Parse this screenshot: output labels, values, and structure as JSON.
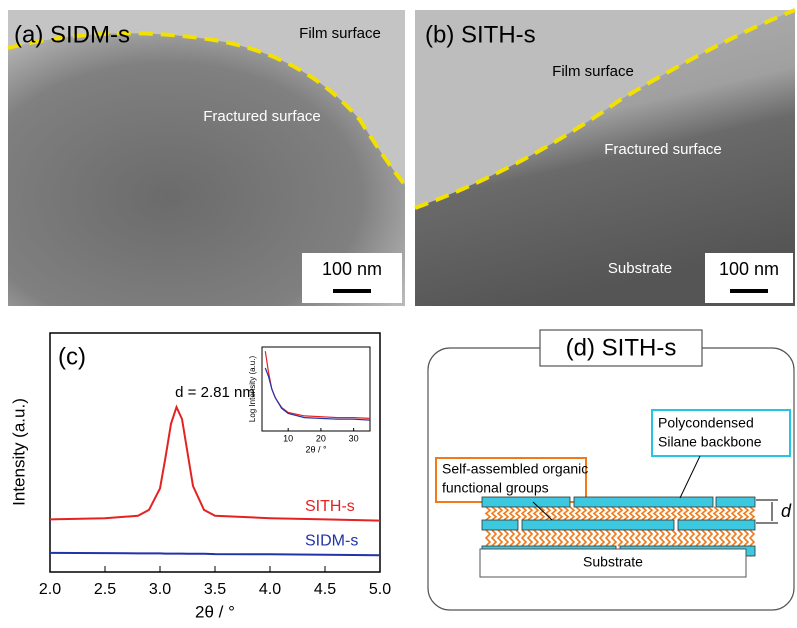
{
  "panels": {
    "a": {
      "label": "(a) SIDM-s",
      "top_text": "Film surface",
      "middle_text": "Fractured surface",
      "scale": "100 nm"
    },
    "b": {
      "label": "(b) SITH-s",
      "top_text": "Film surface",
      "middle_text": "Fractured surface",
      "bottom_text": "Substrate",
      "scale": "100 nm"
    }
  },
  "chart_data": [
    {
      "type": "line",
      "panel_label": "(c)",
      "x_label": "2θ / °",
      "y_label": "Intensity (a.u.)",
      "annotation": "d = 2.81 nm",
      "x": [
        2.0,
        2.5,
        2.8,
        2.9,
        3.0,
        3.05,
        3.1,
        3.15,
        3.2,
        3.25,
        3.3,
        3.4,
        3.5,
        4.0,
        4.5,
        5.0
      ],
      "series": [
        {
          "name": "SITH-s",
          "color": "#e32222",
          "values": [
            2.2,
            2.25,
            2.35,
            2.6,
            3.5,
            4.8,
            6.2,
            6.9,
            6.4,
            5.0,
            3.6,
            2.6,
            2.35,
            2.25,
            2.2,
            2.15
          ]
        },
        {
          "name": "SIDM-s",
          "color": "#2233aa",
          "values": [
            0.8,
            0.79,
            0.78,
            0.78,
            0.78,
            0.77,
            0.77,
            0.77,
            0.77,
            0.76,
            0.76,
            0.76,
            0.75,
            0.74,
            0.72,
            0.7
          ]
        }
      ],
      "xlim": [
        2.0,
        5.0
      ],
      "ylim": [
        0,
        10
      ],
      "xticks": [
        {
          "value": 2,
          "label": "2.0"
        },
        {
          "value": 2.5,
          "label": "2.5"
        },
        {
          "value": 3,
          "label": "3.0"
        },
        {
          "value": 3.5,
          "label": "3.5"
        },
        {
          "value": 4,
          "label": "4.0"
        },
        {
          "value": 4.5,
          "label": "4.5"
        },
        {
          "value": 5,
          "label": "5.0"
        }
      ]
    },
    {
      "type": "line",
      "x_label": "2θ / °",
      "y_label": "Log Intensity (a.u.)",
      "x": [
        3,
        4,
        5,
        6,
        8,
        10,
        15,
        20,
        25,
        30,
        35
      ],
      "series": [
        {
          "color": "#e32222",
          "values": [
            9.5,
            7,
            5,
            4,
            2.8,
            2.2,
            1.8,
            1.7,
            1.6,
            1.6,
            1.5
          ]
        },
        {
          "color": "#2233aa",
          "values": [
            7.5,
            6.5,
            5,
            4,
            2.7,
            2.1,
            1.6,
            1.5,
            1.4,
            1.4,
            1.3
          ]
        }
      ],
      "xlim": [
        2,
        35
      ],
      "ylim": [
        0,
        10
      ],
      "xticks": [
        10,
        20,
        30
      ]
    }
  ],
  "diagram": {
    "title": "(d) SITH-s",
    "organic_label": [
      "Self-assembled organic",
      "functional groups"
    ],
    "silane_label": [
      "Polycondensed",
      "Silane backbone"
    ],
    "spacing_label": "d",
    "substrate": "Substrate"
  }
}
